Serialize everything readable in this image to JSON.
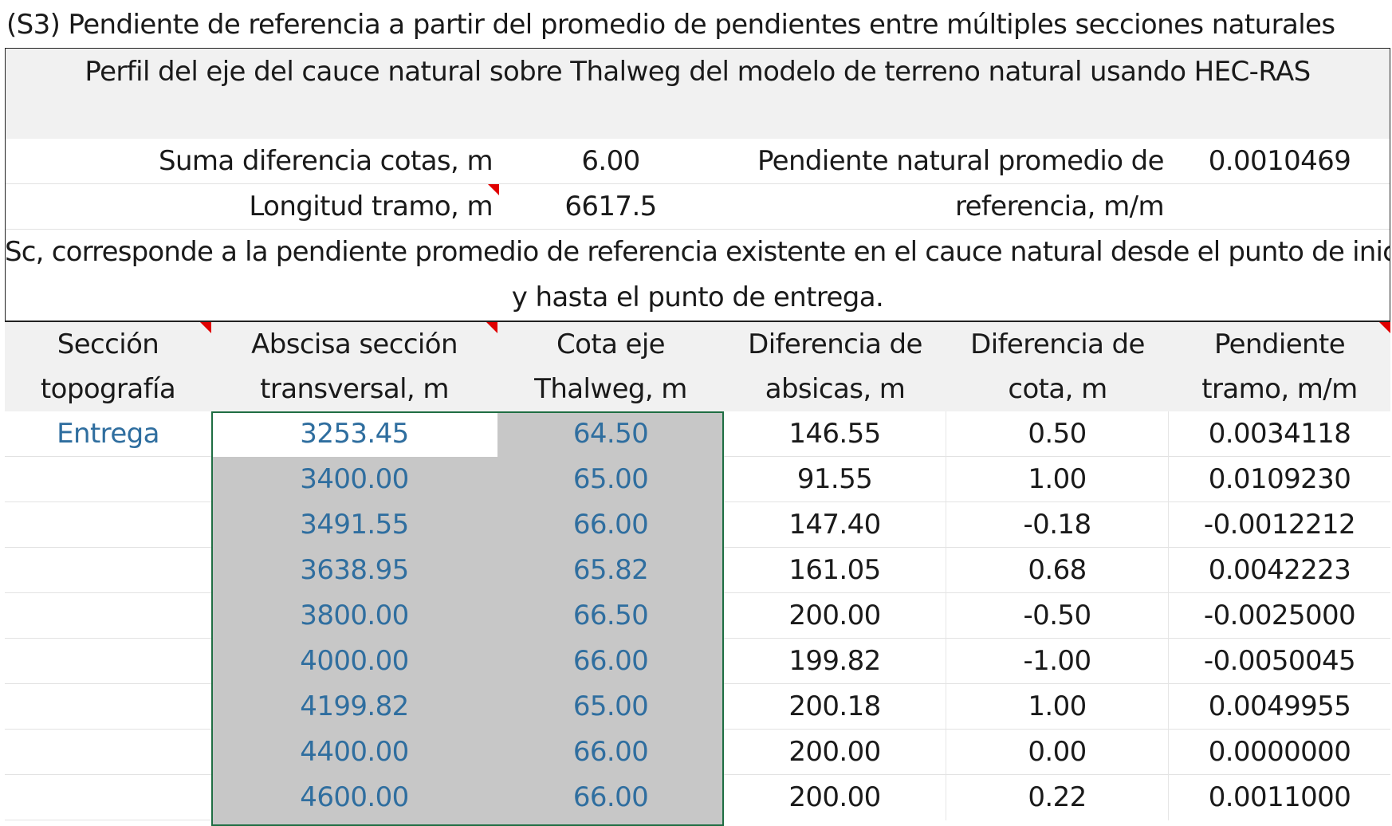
{
  "title": "(S3) Pendiente de referencia a partir del promedio de pendientes entre múltiples secciones naturales",
  "panel_title": "Perfil del eje del cauce natural sobre Thalweg del modelo de terreno natural usando HEC-RAS",
  "summary": {
    "suma_label": "Suma diferencia cotas, m",
    "suma_value": "6.00",
    "longitud_label": "Longitud tramo, m",
    "longitud_value": "6617.5",
    "pendiente_label_line1": "Pendiente natural promedio de",
    "pendiente_label_line2": "referencia, m/m",
    "pendiente_value": "0.0010469"
  },
  "note_line1": "Sc, corresponde a la pendiente promedio de referencia existente en el cauce natural desde el punto de inicio",
  "note_line2": "y hasta el punto de entrega.",
  "columns": [
    {
      "line1": "Sección",
      "line2": "topografía"
    },
    {
      "line1": "Abscisa sección",
      "line2": "transversal, m"
    },
    {
      "line1": "Cota eje",
      "line2": "Thalweg, m"
    },
    {
      "line1": "Diferencia de",
      "line2": "absicas, m"
    },
    {
      "line1": "Diferencia de",
      "line2": "cota, m"
    },
    {
      "line1": "Pendiente",
      "line2": "tramo, m/m"
    }
  ],
  "rows": [
    {
      "seccion": "Entrega",
      "abscisa": "3253.45",
      "cota": "64.50",
      "dif_abs": "146.55",
      "dif_cota": "0.50",
      "pendiente": "0.0034118"
    },
    {
      "seccion": "",
      "abscisa": "3400.00",
      "cota": "65.00",
      "dif_abs": "91.55",
      "dif_cota": "1.00",
      "pendiente": "0.0109230"
    },
    {
      "seccion": "",
      "abscisa": "3491.55",
      "cota": "66.00",
      "dif_abs": "147.40",
      "dif_cota": "-0.18",
      "pendiente": "-0.0012212"
    },
    {
      "seccion": "",
      "abscisa": "3638.95",
      "cota": "65.82",
      "dif_abs": "161.05",
      "dif_cota": "0.68",
      "pendiente": "0.0042223"
    },
    {
      "seccion": "",
      "abscisa": "3800.00",
      "cota": "66.50",
      "dif_abs": "200.00",
      "dif_cota": "-0.50",
      "pendiente": "-0.0025000"
    },
    {
      "seccion": "",
      "abscisa": "4000.00",
      "cota": "66.00",
      "dif_abs": "199.82",
      "dif_cota": "-1.00",
      "pendiente": "-0.0050045"
    },
    {
      "seccion": "",
      "abscisa": "4199.82",
      "cota": "65.00",
      "dif_abs": "200.18",
      "dif_cota": "1.00",
      "pendiente": "0.0049955"
    },
    {
      "seccion": "",
      "abscisa": "4400.00",
      "cota": "66.00",
      "dif_abs": "200.00",
      "dif_cota": "0.00",
      "pendiente": "0.0000000"
    },
    {
      "seccion": "",
      "abscisa": "4600.00",
      "cota": "66.00",
      "dif_abs": "200.00",
      "dif_cota": "0.22",
      "pendiente": "0.0011000"
    }
  ],
  "colors": {
    "selection_border": "#1f6e43",
    "selection_fill": "#c7c7c7",
    "link_blue": "#2f6e9f",
    "comment_marker": "#e00000"
  }
}
